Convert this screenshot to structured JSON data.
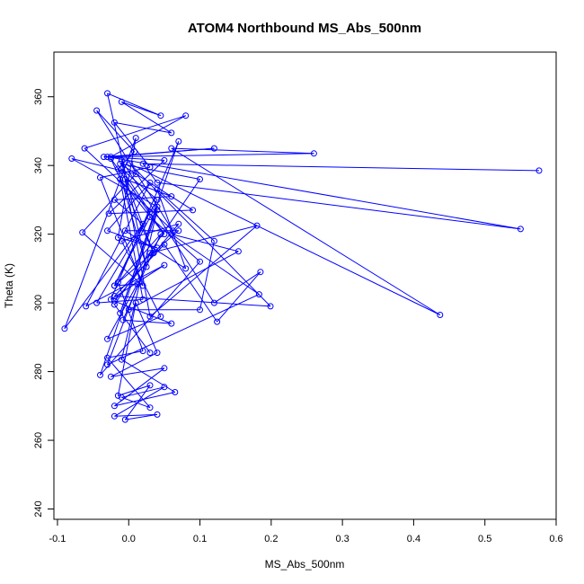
{
  "chart_data": {
    "type": "line",
    "title": "ATOM4 Northbound MS_Abs_500nm",
    "xlabel": "MS_Abs_500nm",
    "ylabel": "Theta (K)",
    "xlim": [
      -0.105,
      0.6
    ],
    "ylim": [
      237,
      373
    ],
    "xticks": [
      -0.1,
      0.0,
      0.1,
      0.2,
      0.3,
      0.4,
      0.5,
      0.6
    ],
    "xtick_labels": [
      "-0.1",
      "0.0",
      "0.1",
      "0.2",
      "0.3",
      "0.4",
      "0.5",
      "0.6"
    ],
    "yticks": [
      240,
      260,
      280,
      300,
      320,
      340,
      360
    ],
    "ytick_labels": [
      "240",
      "260",
      "280",
      "300",
      "320",
      "340",
      "360"
    ],
    "grid": false,
    "series_color": "#0000ff",
    "marker": "open-circle",
    "series": [
      {
        "x": [
          0.576,
          0.02,
          0.04,
          0.55,
          -0.03,
          0.26,
          0.06,
          0.437,
          0.002,
          0.199,
          -0.02,
          0.05,
          0.124,
          0.185,
          0.12,
          -0.01,
          0.03,
          0.18,
          0.03,
          -0.03,
          0.183,
          0.06,
          0.154,
          0.0,
          0.1,
          0.12,
          0.04,
          0.08,
          -0.005,
          0.07,
          -0.02,
          0.03,
          0.1,
          -0.04,
          0.04,
          -0.01,
          0.065,
          -0.02,
          0.05,
          -0.025,
          0.04,
          0.01,
          -0.015,
          0.03,
          -0.005,
          0.04,
          -0.02,
          0.05,
          -0.01,
          0.03,
          -0.03,
          0.02,
          -0.015,
          0.045,
          -0.008,
          0.06,
          -0.02,
          0.07,
          -0.01,
          0.045,
          -0.03,
          0.012,
          -0.02,
          0.03,
          -0.01,
          0.04,
          -0.045,
          0.02,
          -0.012,
          0.05,
          -0.025,
          0.035,
          -0.005,
          0.06,
          -0.02,
          0.02,
          -0.09,
          0.01,
          -0.015,
          0.04,
          -0.03,
          0.03,
          -0.06,
          0.05,
          -0.025,
          0.07,
          -0.012,
          0.04,
          -0.08,
          0.01,
          -0.065,
          0.02,
          -0.04,
          0.03,
          -0.02,
          0.06,
          -0.01,
          0.045,
          -0.03,
          0.025,
          -0.015,
          0.008,
          -0.045,
          0.062,
          -0.062,
          0.08,
          -0.025,
          0.12,
          -0.035,
          0.05,
          -0.028,
          0.09,
          -0.012,
          0.1,
          -0.02,
          0.03
        ],
        "y": [
          338.5,
          340.5,
          335,
          321.5,
          342.5,
          343.5,
          345,
          296.5,
          340.5,
          299,
          302,
          317,
          294.5,
          309,
          300,
          341.5,
          296,
          322.5,
          314.5,
          282,
          302.5,
          320,
          315,
          298,
          298,
          318,
          333,
          310,
          321,
          321,
          305,
          325,
          312,
          279,
          327,
          283.5,
          274,
          270,
          281,
          278.5,
          285.5,
          300,
          273,
          276,
          266,
          267.5,
          267,
          275.5,
          272.5,
          269.5,
          284,
          286,
          306,
          320,
          295,
          294,
          300.5,
          323,
          318,
          296,
          289.5,
          305.5,
          305,
          326.5,
          339,
          330,
          300,
          301,
          336,
          320,
          342,
          314.5,
          336,
          331,
          330,
          323,
          292.5,
          348,
          319,
          316,
          321,
          335,
          299,
          311,
          301,
          347,
          297,
          328,
          342,
          337.5,
          320.5,
          305,
          336.5,
          339.5,
          352.5,
          349.5,
          358.5,
          354.5,
          361,
          310.5,
          339,
          344,
          356,
          321,
          345,
          354.5,
          342.5,
          345,
          342.5,
          341.5,
          326,
          327,
          340.5,
          336,
          299.5,
          285.5
        ]
      }
    ]
  }
}
